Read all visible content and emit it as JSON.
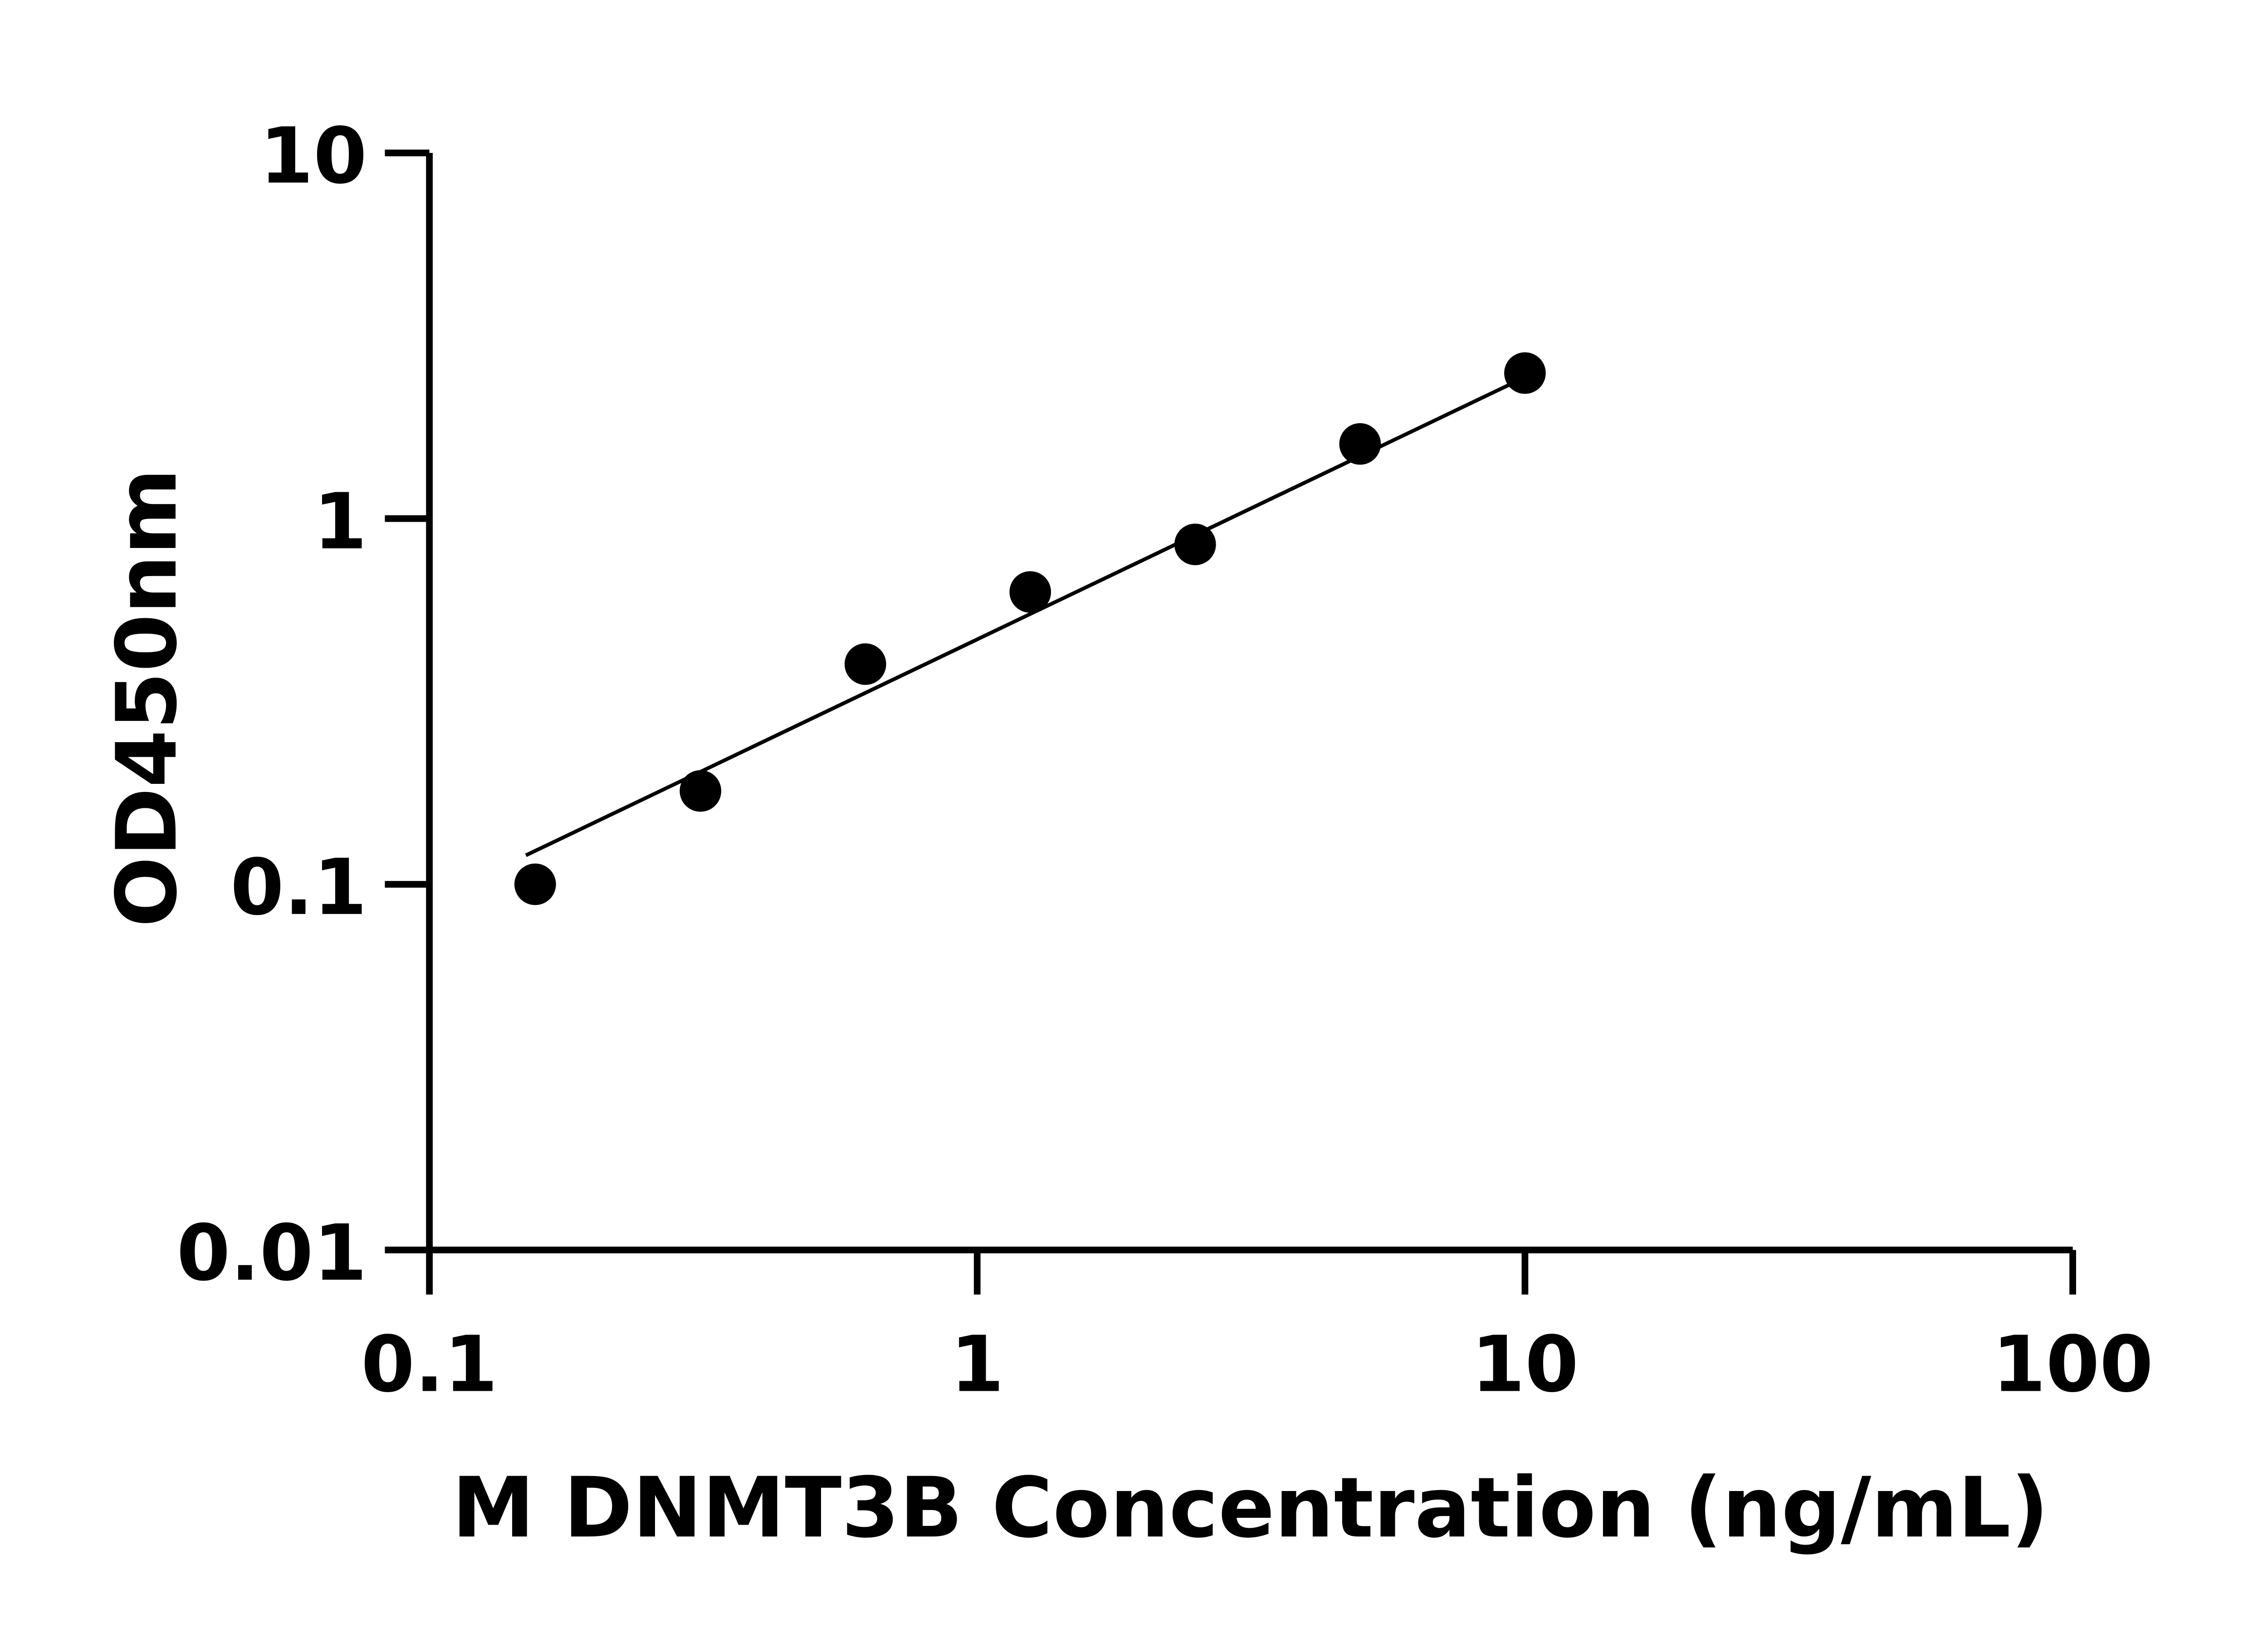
{
  "chart_data": {
    "type": "scatter",
    "title": "",
    "xlabel": "M DNMT3B Concentration (ng/mL)",
    "ylabel": "OD450nm",
    "xscale": "log",
    "yscale": "log",
    "xlim": [
      0.1,
      100
    ],
    "ylim": [
      0.01,
      10
    ],
    "xticks": [
      0.1,
      1,
      10,
      100
    ],
    "xtick_labels": [
      "0.1",
      "1",
      "10",
      "100"
    ],
    "yticks": [
      0.01,
      0.1,
      1,
      10
    ],
    "ytick_labels": [
      "0.01",
      "0.1",
      "1",
      "10"
    ],
    "grid": false,
    "legend": "none",
    "marker_color": "#000000",
    "points": {
      "x": [
        0.156,
        0.3125,
        0.625,
        1.25,
        2.5,
        5,
        10
      ],
      "y": [
        0.1,
        0.18,
        0.4,
        0.63,
        0.85,
        1.6,
        2.5
      ]
    },
    "fit_line": {
      "x": [
        0.15,
        9.8
      ],
      "y": [
        0.12,
        2.4
      ]
    }
  }
}
